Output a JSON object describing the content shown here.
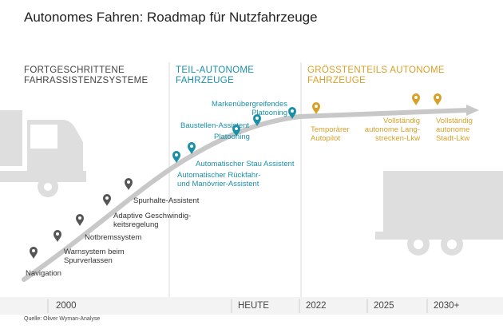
{
  "title": "Autonomes Fahren: Roadmap für Nutzfahrzeuge",
  "phases": [
    {
      "lines": [
        "FORTGESCHRITTENE",
        "FAHRASSISTENZSYSTEME"
      ],
      "color": "#444444"
    },
    {
      "lines": [
        "TEIL-AUTONOME",
        "FAHRZEUGE"
      ],
      "color": "#1a90a8"
    },
    {
      "lines": [
        "GRÖSSTENTEILS AUTONOME",
        "FAHRZEUGE"
      ],
      "color": "#d9a028"
    }
  ],
  "milestones": [
    {
      "lines": [
        "Navigation"
      ],
      "color": "#555555"
    },
    {
      "lines": [
        "Warnsystem beim",
        "Spurverlassen"
      ],
      "color": "#555555"
    },
    {
      "lines": [
        "Notbremssystem"
      ],
      "color": "#555555"
    },
    {
      "lines": [
        "Adaptive Geschwindig-",
        "keitsregelung"
      ],
      "color": "#555555"
    },
    {
      "lines": [
        "Spurhalte-Assistent"
      ],
      "color": "#555555"
    },
    {
      "lines": [
        "Automatischer Rückfahr-",
        "und Manövrier-Assistent"
      ],
      "color": "#1a90a8"
    },
    {
      "lines": [
        "Automatischer Stau Assistent"
      ],
      "color": "#1a90a8"
    },
    {
      "lines": [
        "Platooning"
      ],
      "color": "#1a90a8"
    },
    {
      "lines": [
        "Baustellen-Assistent"
      ],
      "color": "#1a90a8"
    },
    {
      "lines": [
        "Markenübergreifendes",
        "Platooning"
      ],
      "color": "#1a90a8"
    },
    {
      "lines": [
        "Temporärer",
        "Autopilot"
      ],
      "color": "#d9a028"
    },
    {
      "lines": [
        "Vollständig",
        "autonome Lang-",
        "strecken-Lkw"
      ],
      "color": "#d9a028"
    },
    {
      "lines": [
        "Vollständig",
        "autonome",
        "Stadt-Lkw"
      ],
      "color": "#d9a028"
    }
  ],
  "timeline": [
    "2000",
    "HEUTE",
    "2022",
    "2025",
    "2030+"
  ],
  "source": "Quelle: Oliver Wyman-Analyse",
  "colors": {
    "curve": "#c8c8c8",
    "truck": "#dedede",
    "divider": "#d8d8d8"
  },
  "icons": [
    "truck-icon",
    "truck-icon",
    "map-pin-icon"
  ]
}
